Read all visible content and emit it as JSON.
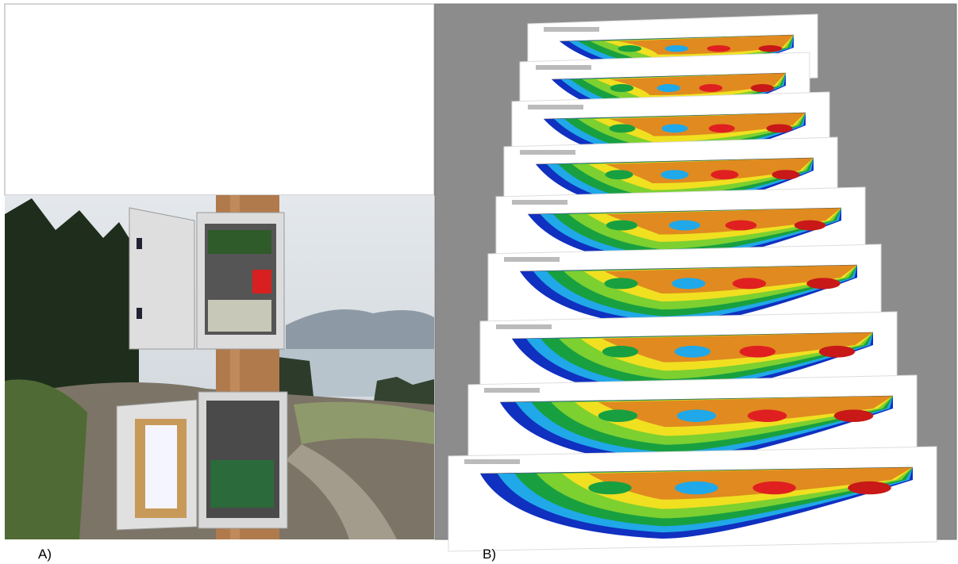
{
  "panels": [
    {
      "label": "A)"
    },
    {
      "label": "B)"
    }
  ]
}
